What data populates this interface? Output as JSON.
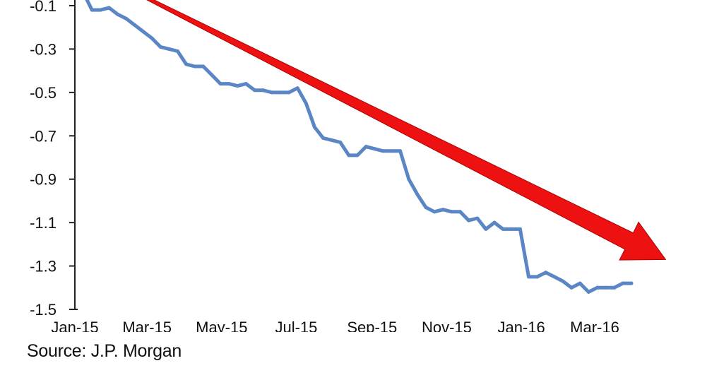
{
  "source_note": "Source: J.P. Morgan",
  "chart_data": {
    "type": "line",
    "title": "",
    "xlabel": "",
    "ylabel": "",
    "ylim": [
      -1.5,
      -0.05
    ],
    "y_ticks": [
      -0.1,
      -0.3,
      -0.5,
      -0.7,
      -0.9,
      -1.1,
      -1.3,
      -1.5
    ],
    "y_tick_labels": [
      "-0.1",
      "-0.3",
      "-0.5",
      "-0.7",
      "-0.9",
      "-1.1",
      "-1.3",
      "-1.5"
    ],
    "x_tick_labels": [
      "Jan-15",
      "Mar-15",
      "May-15",
      "Jul-15",
      "Sep-15",
      "Nov-15",
      "Jan-16",
      "Mar-16"
    ],
    "x_tick_dates": [
      "2015-01-01",
      "2015-03-01",
      "2015-05-01",
      "2015-07-01",
      "2015-09-01",
      "2015-11-01",
      "2016-01-01",
      "2016-03-01"
    ],
    "x_range": [
      "2015-01-01",
      "2016-04-30"
    ],
    "grid": false,
    "legend": "none",
    "line_color": "#5b86c5",
    "trend_arrow_color": "#ee1111",
    "trend_arrow": {
      "from": {
        "date": "2015-02-20",
        "value": -0.04
      },
      "to": {
        "date": "2016-04-28",
        "value": -1.27
      }
    },
    "series": [
      {
        "x": [
          "2015-01-08",
          "2015-01-15",
          "2015-01-22",
          "2015-01-29",
          "2015-02-05",
          "2015-02-12",
          "2015-02-19",
          "2015-02-26",
          "2015-03-05",
          "2015-03-12",
          "2015-03-19",
          "2015-03-26",
          "2015-04-02",
          "2015-04-09",
          "2015-04-16",
          "2015-04-23",
          "2015-04-30",
          "2015-05-07",
          "2015-05-14",
          "2015-05-21",
          "2015-05-28",
          "2015-06-04",
          "2015-06-11",
          "2015-06-18",
          "2015-06-25",
          "2015-07-02",
          "2015-07-09",
          "2015-07-16",
          "2015-07-23",
          "2015-07-30",
          "2015-08-06",
          "2015-08-13",
          "2015-08-20",
          "2015-08-27",
          "2015-09-03",
          "2015-09-10",
          "2015-09-17",
          "2015-09-24",
          "2015-10-01",
          "2015-10-08",
          "2015-10-15",
          "2015-10-22",
          "2015-10-29",
          "2015-11-05",
          "2015-11-12",
          "2015-11-19",
          "2015-11-26",
          "2015-12-03",
          "2015-12-10",
          "2015-12-17",
          "2015-12-24",
          "2015-12-31",
          "2016-01-07",
          "2016-01-14",
          "2016-01-21",
          "2016-01-28",
          "2016-02-04",
          "2016-02-11",
          "2016-02-18",
          "2016-02-25",
          "2016-03-03",
          "2016-03-10",
          "2016-03-17",
          "2016-03-24",
          "2016-03-31"
        ],
        "values": [
          -0.04,
          -0.12,
          -0.12,
          -0.11,
          -0.14,
          -0.16,
          -0.19,
          -0.22,
          -0.25,
          -0.29,
          -0.3,
          -0.31,
          -0.37,
          -0.38,
          -0.38,
          -0.42,
          -0.46,
          -0.46,
          -0.47,
          -0.46,
          -0.49,
          -0.49,
          -0.5,
          -0.5,
          -0.5,
          -0.48,
          -0.55,
          -0.66,
          -0.71,
          -0.72,
          -0.73,
          -0.79,
          -0.79,
          -0.75,
          -0.76,
          -0.77,
          -0.77,
          -0.77,
          -0.9,
          -0.97,
          -1.03,
          -1.05,
          -1.04,
          -1.05,
          -1.05,
          -1.09,
          -1.08,
          -1.13,
          -1.1,
          -1.13,
          -1.13,
          -1.13,
          -1.35,
          -1.35,
          -1.33,
          -1.35,
          -1.37,
          -1.4,
          -1.38,
          -1.42,
          -1.4,
          -1.4,
          -1.4,
          -1.38,
          -1.38
        ]
      }
    ]
  }
}
